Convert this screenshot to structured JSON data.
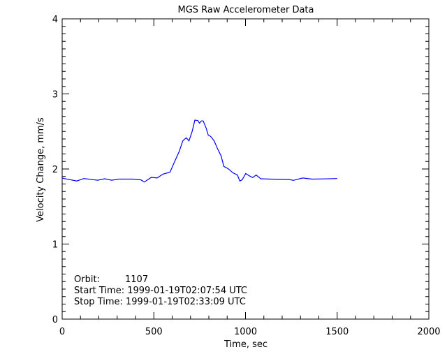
{
  "chart_data": {
    "type": "line",
    "title": "MGS Raw Accelerometer Data",
    "xlabel": "Time, sec",
    "ylabel": "Velocity Change, mm/s",
    "xlim": [
      0,
      2000
    ],
    "ylim": [
      0,
      4
    ],
    "x_ticks": [
      "0",
      "500",
      "1000",
      "1500",
      "2000"
    ],
    "y_ticks": [
      "0",
      "1",
      "2",
      "3",
      "4"
    ],
    "grid": false,
    "line_color": "#0000ff",
    "series": [
      {
        "x": [
          0,
          11,
          80,
          118,
          194,
          232,
          270,
          309,
          385,
          430,
          448,
          486,
          518,
          550,
          588,
          613,
          639,
          658,
          677,
          692,
          709,
          724,
          740,
          749,
          759,
          769,
          785,
          797,
          810,
          829,
          848,
          867,
          882,
          906,
          931,
          956,
          969,
          982,
          1001,
          1020,
          1039,
          1058,
          1083,
          1134,
          1236,
          1261,
          1312,
          1363,
          1426,
          1500
        ],
        "y": [
          1.88,
          1.873,
          1.84,
          1.873,
          1.85,
          1.87,
          1.85,
          1.865,
          1.865,
          1.855,
          1.826,
          1.888,
          1.88,
          1.932,
          1.956,
          2.096,
          2.236,
          2.375,
          2.416,
          2.375,
          2.5,
          2.65,
          2.645,
          2.61,
          2.64,
          2.64,
          2.546,
          2.45,
          2.434,
          2.375,
          2.267,
          2.174,
          2.034,
          2.003,
          1.95,
          1.92,
          1.839,
          1.857,
          1.94,
          1.91,
          1.886,
          1.92,
          1.87,
          1.865,
          1.86,
          1.848,
          1.88,
          1.865,
          1.868,
          1.873
        ]
      }
    ]
  },
  "annotations": {
    "orbit_label": "Orbit:",
    "orbit_value": "1107",
    "start_time": "Start Time: 1999-01-19T02:07:54 UTC",
    "stop_time": "Stop Time: 1999-01-19T02:33:09 UTC"
  }
}
